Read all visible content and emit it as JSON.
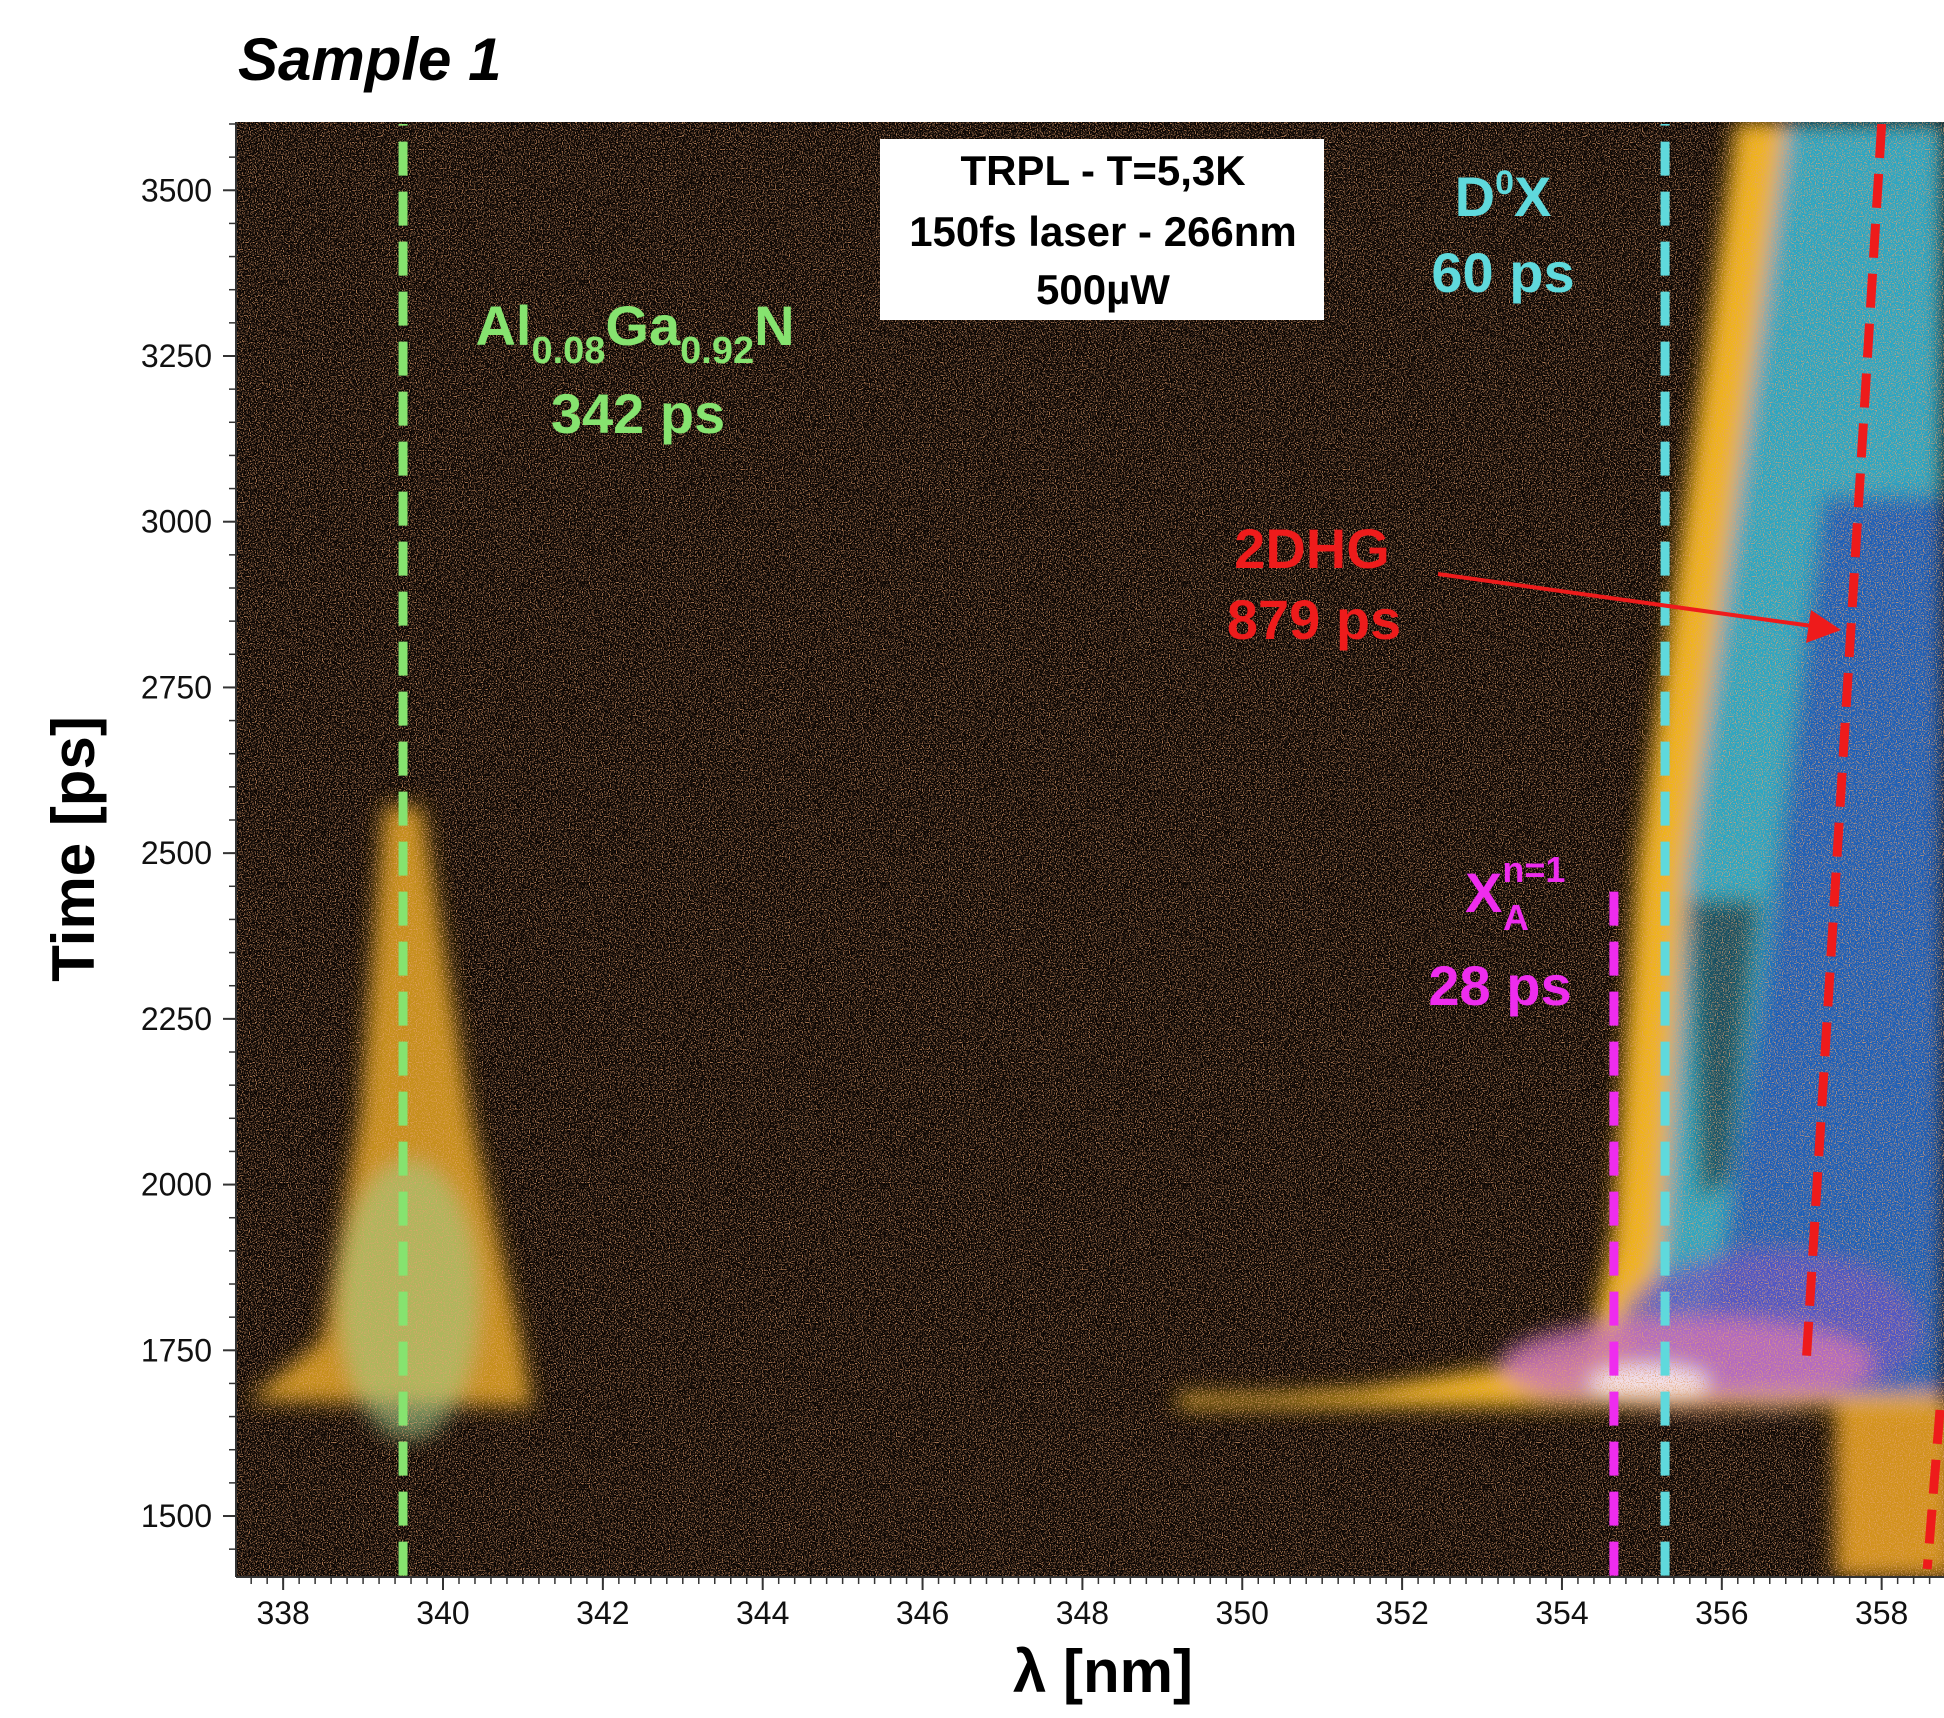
{
  "chart_data": {
    "type": "heatmap",
    "title": "Sample 1",
    "xlabel": "λ [nm]",
    "ylabel": "Time [ps]",
    "xlim": [
      337.41,
      358.78
    ],
    "ylim": [
      1408,
      3603
    ],
    "xticks": [
      338,
      340,
      342,
      344,
      346,
      348,
      350,
      352,
      354,
      356,
      358
    ],
    "yticks": [
      1500,
      1750,
      2000,
      2250,
      2500,
      2750,
      3000,
      3250,
      3500
    ],
    "minor_tick_step": {
      "x": 0.2,
      "y": 50
    },
    "info_box": [
      "TRPL - T=5,3K",
      "150fs laser - 266nm",
      "500µW"
    ],
    "annotations": {
      "algan": {
        "parts": [
          "Al",
          "0.08",
          "Ga",
          "0.92",
          "N"
        ],
        "lifetime": "342 ps",
        "color": "#86e36f"
      },
      "d0x": {
        "parts": [
          "D",
          "0",
          "X"
        ],
        "lifetime": "60 ps",
        "color": "#5fd9dc"
      },
      "dhg": {
        "parts": [
          "2DHG"
        ],
        "lifetime": "879 ps",
        "color": "#ee1b1b"
      },
      "xa": {
        "parts": [
          "X",
          "n=1",
          "A"
        ],
        "lifetime": "28 ps",
        "color": "#ee2cee"
      }
    },
    "markers": [
      {
        "color": "#86e36f",
        "x": [
          339.5,
          339.5
        ],
        "y": [
          1410,
          3600
        ]
      },
      {
        "color": "#5fd9dc",
        "x": [
          355.29,
          355.29
        ],
        "y": [
          1410,
          3600
        ]
      },
      {
        "color": "#ee2cee",
        "x": [
          354.65,
          354.65
        ],
        "y": [
          1410,
          2450
        ]
      },
      {
        "color": "#ee1b1b",
        "x": [
          358.0,
          357.05
        ],
        "y": [
          3600,
          1720
        ]
      },
      {
        "color": "#ee1b1b",
        "x": [
          358.73,
          358.57
        ],
        "y": [
          1660,
          1420
        ]
      }
    ]
  }
}
